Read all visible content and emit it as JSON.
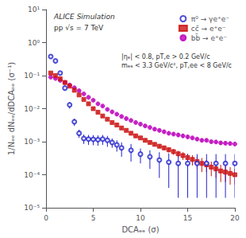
{
  "chart_data": {
    "type": "scatter",
    "xlabel": "DCAₑₑ (σ)",
    "ylabel": "1/Nₑₑ dNₑₑ/dDCAₑₑ (σ⁻¹)",
    "log": "y",
    "grid": false,
    "legend": "upper right",
    "xlim": [
      0,
      20
    ],
    "xticks": [
      0,
      5,
      10,
      15,
      20
    ],
    "ylim": [
      1e-05,
      10
    ],
    "yticks": [
      {
        "value": 1e-05,
        "label": "10⁻⁵"
      },
      {
        "value": 0.0001,
        "label": "10⁻⁴"
      },
      {
        "value": 0.001,
        "label": "10⁻³"
      },
      {
        "value": 0.01,
        "label": "10⁻²"
      },
      {
        "value": 0.1,
        "label": "10⁻¹"
      },
      {
        "value": 1,
        "label": "10⁰"
      },
      {
        "value": 10,
        "label": "10¹"
      }
    ],
    "annotations": [
      "ALICE Simulation",
      "pp √s = 7 TeV",
      "|ηₑ| < 0.8, pT,e > 0.2 GeV/c\nmₑₑ < 3.3 GeV/c², pT,ee < 8 GeV/c"
    ],
    "series": [
      {
        "name": "π⁰ → γe⁺e⁻",
        "color": "#2222cc",
        "marker": "open_circle",
        "x": [
          0.5,
          1.0,
          1.5,
          2.0,
          2.5,
          3.0,
          3.5,
          4.0,
          4.5,
          5.0,
          5.5,
          6.0,
          6.5,
          7.0,
          7.5,
          8.0,
          9.0,
          10.0,
          11.0,
          12.0,
          13.0,
          14.0,
          15.0,
          16.0,
          17.0,
          18.0,
          19.0,
          20.0
        ],
        "values": [
          0.38,
          0.28,
          0.12,
          0.042,
          0.013,
          0.004,
          0.0018,
          0.00125,
          0.0012,
          0.00118,
          0.00115,
          0.0012,
          0.0011,
          0.00095,
          0.0008,
          0.00065,
          0.00055,
          0.00042,
          0.00035,
          0.00028,
          0.00024,
          0.00022,
          0.00022,
          0.00022,
          0.00022,
          0.00022,
          0.00022,
          0.00022
        ],
        "yerr": [
          0.025,
          0.02,
          0.012,
          0.006,
          0.003,
          0.001,
          0.0005,
          0.0004,
          0.0004,
          0.0004,
          0.0004,
          0.0004,
          0.0004,
          0.0003,
          0.0003,
          0.0003,
          0.0003,
          0.0002,
          0.0002,
          0.0002,
          0.0002,
          0.0002,
          0.0002,
          0.0002,
          0.0002,
          0.0002,
          0.0002,
          0.0002
        ]
      },
      {
        "name": "cc̄ → e⁺e⁻",
        "color": "#cc1111",
        "marker": "square",
        "x": [
          0.5,
          1.0,
          1.5,
          2.0,
          2.5,
          3.0,
          3.5,
          4.0,
          4.5,
          5.0,
          5.5,
          6.0,
          6.5,
          7.0,
          7.5,
          8.0,
          8.5,
          9.0,
          9.5,
          10.0,
          10.5,
          11.0,
          11.5,
          12.0,
          12.5,
          13.0,
          13.5,
          14.0,
          14.5,
          15.0,
          15.5,
          16.0,
          16.5,
          17.0,
          17.5,
          18.0,
          18.5,
          19.0,
          19.5,
          20.0
        ],
        "values": [
          0.12,
          0.1,
          0.08,
          0.062,
          0.048,
          0.036,
          0.026,
          0.019,
          0.014,
          0.01,
          0.0078,
          0.006,
          0.0048,
          0.0038,
          0.0032,
          0.0026,
          0.0022,
          0.0018,
          0.0015,
          0.0013,
          0.0011,
          0.00095,
          0.00083,
          0.00073,
          0.00065,
          0.00057,
          0.0005,
          0.00043,
          0.00038,
          0.00033,
          0.00029,
          0.00025,
          0.00022,
          0.0002,
          0.00017,
          0.00015,
          0.00013,
          0.00012,
          0.00011,
          0.0001
        ],
        "yerr": [
          0.005,
          0.004,
          0.004,
          0.003,
          0.002,
          0.002,
          0.001,
          0.001,
          0.001,
          0.0007,
          0.0006,
          0.0005,
          0.0004,
          0.0003,
          0.0003,
          0.0002,
          0.0002,
          0.0002,
          0.0002,
          0.0001,
          0.0001,
          0.0001,
          0.0001,
          0.0001,
          0.0001,
          0.0001,
          0.0001,
          0.0001,
          0.0001,
          0.0001,
          0.0001,
          0.0001,
          0.0001,
          8e-05,
          8e-05,
          7e-05,
          7e-05,
          6e-05,
          6e-05,
          5e-05
        ]
      },
      {
        "name": "bb̄ → e⁺e⁻",
        "color": "#bb00bb",
        "marker": "circle",
        "x": [
          0.5,
          1.0,
          1.5,
          2.0,
          2.5,
          3.0,
          3.5,
          4.0,
          4.5,
          5.0,
          5.5,
          6.0,
          6.5,
          7.0,
          7.5,
          8.0,
          8.5,
          9.0,
          9.5,
          10.0,
          10.5,
          11.0,
          11.5,
          12.0,
          12.5,
          13.0,
          13.5,
          14.0,
          14.5,
          15.0,
          15.5,
          16.0,
          16.5,
          17.0,
          17.5,
          18.0,
          18.5,
          19.0,
          19.5,
          20.0
        ],
        "values": [
          0.09,
          0.082,
          0.072,
          0.062,
          0.052,
          0.043,
          0.035,
          0.028,
          0.022,
          0.018,
          0.014,
          0.012,
          0.0095,
          0.008,
          0.0068,
          0.0058,
          0.005,
          0.0044,
          0.0038,
          0.0034,
          0.003,
          0.0027,
          0.0024,
          0.0022,
          0.002,
          0.0018,
          0.0017,
          0.0016,
          0.0015,
          0.0014,
          0.0013,
          0.0012,
          0.0011,
          0.0011,
          0.001,
          0.00098,
          0.00092,
          0.0009,
          0.00088,
          0.00085
        ],
        "yerr": [
          0.004,
          0.003,
          0.003,
          0.003,
          0.002,
          0.002,
          0.002,
          0.001,
          0.001,
          0.001,
          0.0008,
          0.0007,
          0.0006,
          0.0005,
          0.0005,
          0.0004,
          0.0004,
          0.0003,
          0.0003,
          0.0003,
          0.0003,
          0.0002,
          0.0002,
          0.0002,
          0.0002,
          0.0002,
          0.0002,
          0.0002,
          0.0002,
          0.0002,
          0.0001,
          0.0001,
          0.0001,
          0.0001,
          0.0001,
          0.0001,
          0.0001,
          0.0001,
          0.0001,
          0.0001
        ]
      }
    ]
  }
}
